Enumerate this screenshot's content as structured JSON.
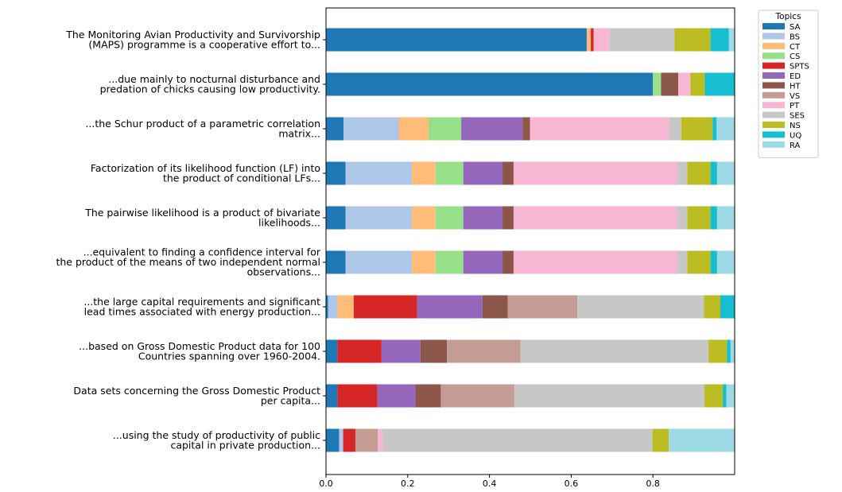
{
  "chart_data": {
    "type": "bar",
    "orientation": "horizontal",
    "stacked": true,
    "xlim": [
      0,
      1
    ],
    "xticks": [
      "0.0",
      "0.2",
      "0.4",
      "0.6",
      "0.8"
    ],
    "legend_title": "Topics",
    "legend_position": "upper-right-outside",
    "topics": [
      {
        "name": "SA",
        "color": "#1f77b4"
      },
      {
        "name": "BS",
        "color": "#aec7e8"
      },
      {
        "name": "CT",
        "color": "#ffbb78"
      },
      {
        "name": "CS",
        "color": "#98df8a"
      },
      {
        "name": "SPTS",
        "color": "#d62728"
      },
      {
        "name": "ED",
        "color": "#9467bd"
      },
      {
        "name": "HT",
        "color": "#8c564b"
      },
      {
        "name": "VS",
        "color": "#c49c94"
      },
      {
        "name": "PT",
        "color": "#f7b6d2"
      },
      {
        "name": "SES",
        "color": "#c7c7c7"
      },
      {
        "name": "NS",
        "color": "#bcbd22"
      },
      {
        "name": "UQ",
        "color": "#17becf"
      },
      {
        "name": "RA",
        "color": "#9edae5"
      }
    ],
    "rows": [
      {
        "label": [
          "The Monitoring Avian Productivity and Survivorship",
          "(MAPS) programme is a cooperative effort to..."
        ],
        "values": [
          0.638,
          0.0,
          0.01,
          0.0,
          0.007,
          0.0,
          0.0,
          0.0,
          0.038,
          0.16,
          0.088,
          0.045,
          0.014
        ]
      },
      {
        "label": [
          "...due mainly to nocturnal disturbance and",
          "predation of chicks causing low productivity."
        ],
        "values": [
          0.8,
          0.0,
          0.0,
          0.02,
          0.0,
          0.0,
          0.042,
          0.0,
          0.03,
          0.0,
          0.035,
          0.073,
          0.0
        ]
      },
      {
        "label": [
          "...the Schur product of a parametric correlation",
          "matrix..."
        ],
        "values": [
          0.043,
          0.135,
          0.073,
          0.08,
          0.0,
          0.15,
          0.018,
          0.0,
          0.34,
          0.03,
          0.077,
          0.01,
          0.044
        ]
      },
      {
        "label": [
          "Factorization of its likelihood function (LF) into",
          "the product of conditional LFs..."
        ],
        "values": [
          0.048,
          0.162,
          0.058,
          0.068,
          0.0,
          0.096,
          0.027,
          0.0,
          0.4,
          0.025,
          0.057,
          0.016,
          0.043
        ]
      },
      {
        "label": [
          "The pairwise likelihood is a product of bivariate",
          "likelihoods..."
        ],
        "values": [
          0.048,
          0.162,
          0.058,
          0.068,
          0.0,
          0.096,
          0.027,
          0.0,
          0.4,
          0.025,
          0.057,
          0.016,
          0.043
        ]
      },
      {
        "label": [
          "...equivalent to finding a confidence interval for",
          "the product of the means of two independent normal",
          "observations..."
        ],
        "values": [
          0.048,
          0.162,
          0.058,
          0.068,
          0.0,
          0.096,
          0.027,
          0.0,
          0.4,
          0.025,
          0.057,
          0.016,
          0.043
        ]
      },
      {
        "label": [
          "...the large capital requirements and significant",
          "lead times associated with energy production..."
        ],
        "values": [
          0.005,
          0.023,
          0.04,
          0.0,
          0.155,
          0.16,
          0.062,
          0.17,
          0.0,
          0.31,
          0.04,
          0.035,
          0.0
        ]
      },
      {
        "label": [
          "...based on Gross Domestic Product data for 100",
          "Countries spanning over 1960-2004."
        ],
        "values": [
          0.028,
          0.0,
          0.0,
          0.0,
          0.108,
          0.095,
          0.065,
          0.18,
          0.0,
          0.46,
          0.045,
          0.009,
          0.01
        ]
      },
      {
        "label": [
          "Data sets concerning the Gross Domestic Product",
          "per capita..."
        ],
        "values": [
          0.028,
          0.0,
          0.0,
          0.0,
          0.098,
          0.093,
          0.062,
          0.18,
          0.0,
          0.465,
          0.045,
          0.009,
          0.02
        ]
      },
      {
        "label": [
          "...using the study of productivity of public",
          "capital in private production..."
        ],
        "values": [
          0.032,
          0.01,
          0.0,
          0.0,
          0.03,
          0.0,
          0.0,
          0.055,
          0.012,
          0.66,
          0.04,
          0.0,
          0.161
        ]
      }
    ]
  }
}
